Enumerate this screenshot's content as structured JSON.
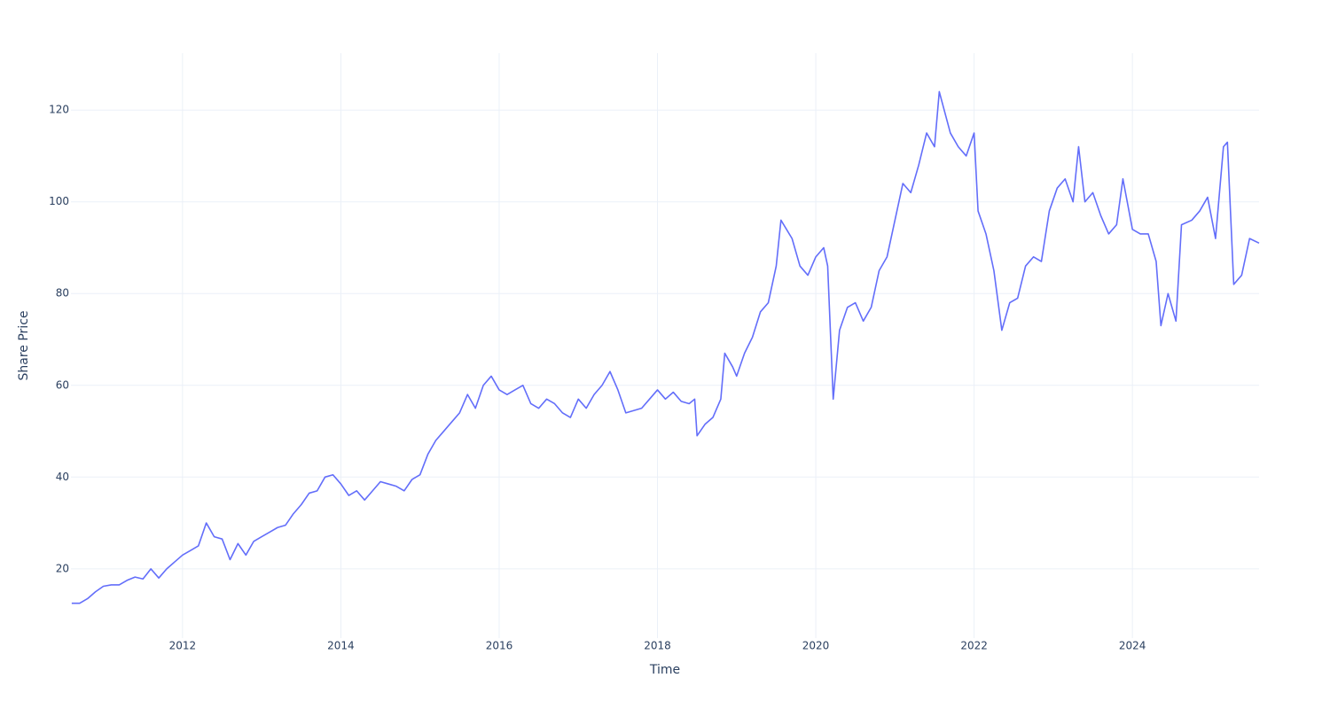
{
  "chart_data": {
    "type": "line",
    "x_label": "Time",
    "y_label": "Share Price",
    "x": [
      2010.6,
      2010.7,
      2010.8,
      2010.9,
      2011.0,
      2011.1,
      2011.2,
      2011.3,
      2011.4,
      2011.5,
      2011.6,
      2011.7,
      2011.8,
      2011.9,
      2012.0,
      2012.1,
      2012.2,
      2012.3,
      2012.4,
      2012.5,
      2012.6,
      2012.7,
      2012.8,
      2012.9,
      2013.0,
      2013.1,
      2013.2,
      2013.3,
      2013.4,
      2013.5,
      2013.6,
      2013.7,
      2013.8,
      2013.9,
      2014.0,
      2014.1,
      2014.2,
      2014.3,
      2014.4,
      2014.5,
      2014.6,
      2014.7,
      2014.8,
      2014.9,
      2015.0,
      2015.1,
      2015.2,
      2015.3,
      2015.4,
      2015.5,
      2015.6,
      2015.7,
      2015.8,
      2015.9,
      2016.0,
      2016.1,
      2016.2,
      2016.3,
      2016.4,
      2016.5,
      2016.6,
      2016.7,
      2016.8,
      2016.9,
      2017.0,
      2017.1,
      2017.2,
      2017.3,
      2017.4,
      2017.5,
      2017.6,
      2017.7,
      2017.8,
      2017.9,
      2018.0,
      2018.1,
      2018.2,
      2018.3,
      2018.4,
      2018.47,
      2018.5,
      2018.6,
      2018.7,
      2018.8,
      2018.85,
      2018.95,
      2019.0,
      2019.1,
      2019.2,
      2019.3,
      2019.4,
      2019.5,
      2019.56,
      2019.7,
      2019.8,
      2019.9,
      2020.0,
      2020.1,
      2020.15,
      2020.22,
      2020.3,
      2020.4,
      2020.5,
      2020.6,
      2020.7,
      2020.8,
      2020.9,
      2021.0,
      2021.1,
      2021.2,
      2021.3,
      2021.4,
      2021.5,
      2021.56,
      2021.7,
      2021.8,
      2021.9,
      2022.0,
      2022.05,
      2022.15,
      2022.25,
      2022.35,
      2022.45,
      2022.55,
      2022.65,
      2022.75,
      2022.85,
      2022.95,
      2023.05,
      2023.15,
      2023.25,
      2023.32,
      2023.4,
      2023.5,
      2023.6,
      2023.7,
      2023.8,
      2023.88,
      2024.0,
      2024.1,
      2024.2,
      2024.3,
      2024.36,
      2024.45,
      2024.55,
      2024.62,
      2024.75,
      2024.85,
      2024.95,
      2025.05,
      2025.15,
      2025.2,
      2025.28,
      2025.38,
      2025.48,
      2025.6
    ],
    "series": [
      {
        "name": "Share Price",
        "color": "#636efa",
        "values": [
          12.5,
          12.5,
          13.5,
          15,
          16.2,
          16.5,
          16.5,
          17.5,
          18.2,
          17.8,
          20,
          18,
          20,
          21.5,
          23,
          24,
          25,
          30,
          27,
          26.5,
          22,
          25.5,
          23,
          26,
          27,
          28,
          29,
          29.5,
          32,
          34,
          36.5,
          37,
          40,
          40.5,
          38.5,
          36,
          37,
          35,
          37,
          39,
          38.5,
          38,
          37,
          39.5,
          40.5,
          45,
          48,
          50,
          52,
          54,
          58,
          55,
          60,
          62,
          59,
          58,
          59,
          60,
          56,
          55,
          57,
          56,
          54,
          53,
          57,
          55,
          58,
          60,
          63,
          59,
          54,
          54.5,
          55,
          57,
          59,
          57,
          58.5,
          56.5,
          56,
          57,
          49,
          51.5,
          53,
          57,
          67,
          64,
          62,
          67,
          70.5,
          76,
          78,
          86,
          96,
          92,
          86,
          84,
          88,
          90,
          86,
          57,
          72,
          77,
          78,
          74,
          77,
          85,
          88,
          96,
          104,
          102,
          108,
          115,
          112,
          124,
          115,
          112,
          110,
          115,
          98,
          93,
          85,
          72,
          78,
          79,
          86,
          88,
          87,
          98,
          103,
          105,
          100,
          112,
          100,
          102,
          97,
          93,
          95,
          105,
          94,
          93,
          93,
          87,
          73,
          80,
          74,
          95,
          96,
          98,
          101,
          92,
          112,
          113,
          82,
          84,
          92,
          91
        ]
      }
    ],
    "xlim": [
      2010.59,
      2025.6
    ],
    "xticks": [
      2012,
      2014,
      2016,
      2018,
      2020,
      2022,
      2024
    ],
    "ylim": [
      4.9,
      132.4
    ],
    "yticks": [
      20,
      40,
      60,
      80,
      100,
      120
    ],
    "grid": true
  }
}
